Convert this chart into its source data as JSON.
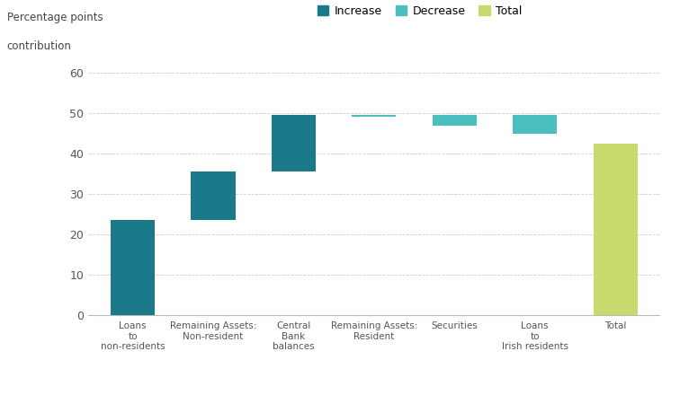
{
  "categories": [
    "Loans\nto\nnon-residents",
    "Remaining Assets:\nNon-resident",
    "Central\nBank\nbalances",
    "Remaining Assets:\nResident",
    "Securities",
    "Loans\nto\nIrish residents",
    "Total"
  ],
  "bar_bottoms": [
    0.0,
    23.5,
    35.5,
    49.2,
    47.0,
    45.0,
    0.0
  ],
  "bar_tops": [
    23.5,
    35.5,
    49.5,
    49.6,
    49.5,
    49.5,
    42.5
  ],
  "bar_types": [
    "increase",
    "increase",
    "increase",
    "decrease",
    "decrease",
    "decrease",
    "total"
  ],
  "colors": {
    "increase": "#1a7a8a",
    "decrease": "#4bbfc0",
    "total": "#c8d96e"
  },
  "ylabel_line1": "Percentage points",
  "ylabel_line2": "contribution",
  "ylim": [
    0,
    60
  ],
  "yticks": [
    0,
    10,
    20,
    30,
    40,
    50,
    60
  ],
  "legend_labels": [
    "Increase",
    "Decrease",
    "Total"
  ],
  "legend_types": [
    "increase",
    "decrease",
    "total"
  ],
  "background_color": "#ffffff",
  "grid_color": "#cccccc",
  "bar_width": 0.55
}
